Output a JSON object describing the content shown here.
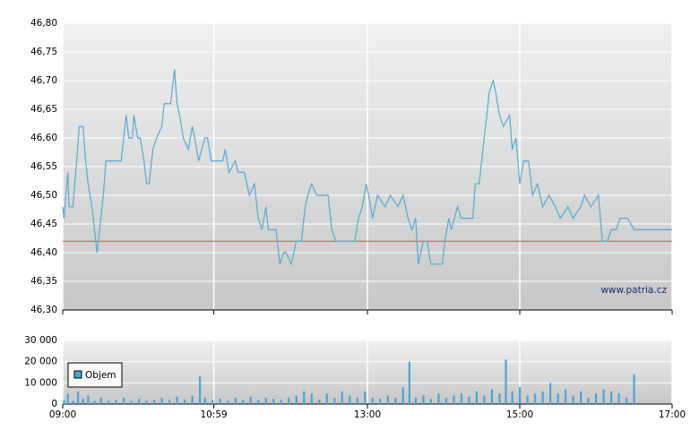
{
  "chart_data": [
    {
      "type": "line",
      "color": "#5aa8d0",
      "watermark": "www.patria.cz",
      "reference_line": {
        "value": 46.42,
        "color": "#e04848"
      },
      "xlim": [
        "09:00",
        "17:00"
      ],
      "ylim": [
        46.3,
        46.8
      ],
      "yticks": [
        {
          "value": 46.3,
          "label": "46,30"
        },
        {
          "value": 46.35,
          "label": "46,35"
        },
        {
          "value": 46.4,
          "label": "46,40"
        },
        {
          "value": 46.45,
          "label": "46,45"
        },
        {
          "value": 46.5,
          "label": "46,50"
        },
        {
          "value": 46.55,
          "label": "46,55"
        },
        {
          "value": 46.6,
          "label": "46,60"
        },
        {
          "value": 46.65,
          "label": "46,65"
        },
        {
          "value": 46.7,
          "label": "46,70"
        },
        {
          "value": 46.75,
          "label": "46,75"
        },
        {
          "value": 46.8,
          "label": "46,80"
        }
      ],
      "grid": true,
      "x": [
        "09:00",
        "09:01",
        "09:04",
        "09:05",
        "09:08",
        "09:11",
        "09:13",
        "09:16",
        "09:18",
        "09:20",
        "09:23",
        "09:27",
        "09:30",
        "09:32",
        "09:34",
        "09:46",
        "09:48",
        "09:50",
        "09:52",
        "09:55",
        "09:56",
        "09:59",
        "10:01",
        "10:04",
        "10:06",
        "10:08",
        "10:11",
        "10:14",
        "10:18",
        "10:20",
        "10:25",
        "10:28",
        "10:30",
        "10:32",
        "10:35",
        "10:39",
        "10:42",
        "10:44",
        "10:47",
        "10:52",
        "10:54",
        "10:57",
        "11:06",
        "11:08",
        "11:11",
        "11:16",
        "11:18",
        "11:23",
        "11:27",
        "11:31",
        "11:34",
        "11:37",
        "11:40",
        "11:42",
        "11:48",
        "11:51",
        "11:54",
        "11:56",
        "12:00",
        "12:04",
        "12:08",
        "12:11",
        "12:13",
        "12:16",
        "12:20",
        "12:25",
        "12:29",
        "12:32",
        "12:35",
        "12:50",
        "12:53",
        "12:56",
        "12:59",
        "13:01",
        "13:04",
        "13:08",
        "13:14",
        "13:18",
        "13:24",
        "13:28",
        "13:32",
        "13:35",
        "13:38",
        "13:40",
        "13:44",
        "13:47",
        "13:50",
        "13:59",
        "14:01",
        "14:04",
        "14:06",
        "14:11",
        "14:14",
        "14:23",
        "14:25",
        "14:28",
        "14:32",
        "14:34",
        "14:36",
        "14:39",
        "14:41",
        "14:44",
        "14:47",
        "14:52",
        "14:54",
        "14:57",
        "15:00",
        "15:03",
        "15:07",
        "15:10",
        "15:14",
        "15:18",
        "15:23",
        "15:28",
        "15:32",
        "15:38",
        "15:42",
        "15:48",
        "15:51",
        "15:56",
        "16:02",
        "16:05",
        "16:09",
        "16:12",
        "16:16",
        "16:19",
        "16:25",
        "16:30",
        "17:00"
      ],
      "values": [
        46.48,
        46.46,
        46.54,
        46.48,
        46.48,
        46.56,
        46.62,
        46.62,
        46.56,
        46.52,
        46.48,
        46.4,
        46.46,
        46.5,
        46.56,
        46.56,
        46.6,
        46.64,
        46.6,
        46.6,
        46.64,
        46.6,
        46.6,
        46.56,
        46.52,
        46.52,
        46.58,
        46.6,
        46.62,
        46.66,
        46.66,
        46.72,
        46.66,
        46.64,
        46.6,
        46.58,
        46.62,
        46.6,
        46.56,
        46.6,
        46.6,
        46.56,
        46.56,
        46.58,
        46.54,
        46.56,
        46.54,
        46.54,
        46.5,
        46.52,
        46.46,
        46.44,
        46.48,
        46.44,
        46.44,
        46.38,
        46.4,
        46.4,
        46.38,
        46.42,
        46.42,
        46.48,
        46.5,
        46.52,
        46.5,
        46.5,
        46.5,
        46.44,
        46.42,
        46.42,
        46.46,
        46.48,
        46.52,
        46.5,
        46.46,
        46.5,
        46.48,
        46.5,
        46.48,
        46.5,
        46.46,
        46.44,
        46.46,
        46.38,
        46.42,
        46.42,
        46.38,
        46.38,
        46.42,
        46.46,
        46.44,
        46.48,
        46.46,
        46.46,
        46.52,
        46.52,
        46.6,
        46.64,
        46.68,
        46.7,
        46.68,
        46.64,
        46.62,
        46.64,
        46.58,
        46.6,
        46.52,
        46.56,
        46.56,
        46.5,
        46.52,
        46.48,
        46.5,
        46.48,
        46.46,
        46.48,
        46.46,
        46.48,
        46.5,
        46.48,
        46.5,
        46.42,
        46.42,
        46.44,
        46.44,
        46.46,
        46.46,
        46.44,
        46.44
      ]
    },
    {
      "type": "bar",
      "xlim": [
        "09:00",
        "17:00"
      ],
      "xticks": [
        "09:00",
        "10:59",
        "13:00",
        "15:00",
        "17:00"
      ],
      "ylim": [
        0,
        30000
      ],
      "yticks": [
        0,
        {
          "value": 10000,
          "label": "10 000"
        },
        {
          "value": 20000,
          "label": "20 000"
        },
        {
          "value": 30000,
          "label": "30 000"
        }
      ],
      "grid": true,
      "legend": "upper-left",
      "x": [
        "09:01",
        "09:04",
        "09:08",
        "09:12",
        "09:16",
        "09:20",
        "09:25",
        "09:30",
        "09:36",
        "09:42",
        "09:48",
        "09:54",
        "10:00",
        "10:06",
        "10:12",
        "10:18",
        "10:24",
        "10:30",
        "10:36",
        "10:42",
        "10:48",
        "10:52",
        "10:58",
        "11:04",
        "11:10",
        "11:16",
        "11:22",
        "11:28",
        "11:34",
        "11:40",
        "11:46",
        "11:52",
        "11:58",
        "12:04",
        "12:10",
        "12:16",
        "12:22",
        "12:28",
        "12:34",
        "12:40",
        "12:46",
        "12:52",
        "12:58",
        "13:04",
        "13:10",
        "13:16",
        "13:22",
        "13:28",
        "13:33",
        "13:38",
        "13:44",
        "13:50",
        "13:56",
        "14:02",
        "14:08",
        "14:14",
        "14:20",
        "14:26",
        "14:32",
        "14:38",
        "14:44",
        "14:49",
        "14:54",
        "15:00",
        "15:06",
        "15:12",
        "15:18",
        "15:24",
        "15:30",
        "15:36",
        "15:42",
        "15:48",
        "15:54",
        "16:00",
        "16:06",
        "16:12",
        "16:18",
        "16:24",
        "16:30"
      ],
      "series": [
        {
          "name": "Objem",
          "color": "#4fa3d1",
          "values": [
            2000,
            5000,
            1500,
            6000,
            2500,
            4000,
            1500,
            3000,
            1500,
            2000,
            3000,
            1500,
            2500,
            1500,
            2000,
            3000,
            2000,
            3500,
            2000,
            4000,
            13000,
            3000,
            2000,
            2500,
            1500,
            3000,
            2000,
            3500,
            2000,
            3000,
            2500,
            2000,
            3000,
            4000,
            6000,
            5000,
            2000,
            5000,
            3000,
            6000,
            4000,
            3000,
            6000,
            3000,
            2500,
            4000,
            3000,
            8000,
            20000,
            3000,
            4000,
            2500,
            5000,
            3000,
            4000,
            5000,
            3500,
            6000,
            4000,
            7000,
            5000,
            21000,
            6000,
            8000,
            4000,
            5000,
            6000,
            10000,
            5000,
            7000,
            4000,
            6000,
            3000,
            5000,
            7000,
            6000,
            5000,
            3000,
            14000
          ]
        }
      ]
    }
  ]
}
